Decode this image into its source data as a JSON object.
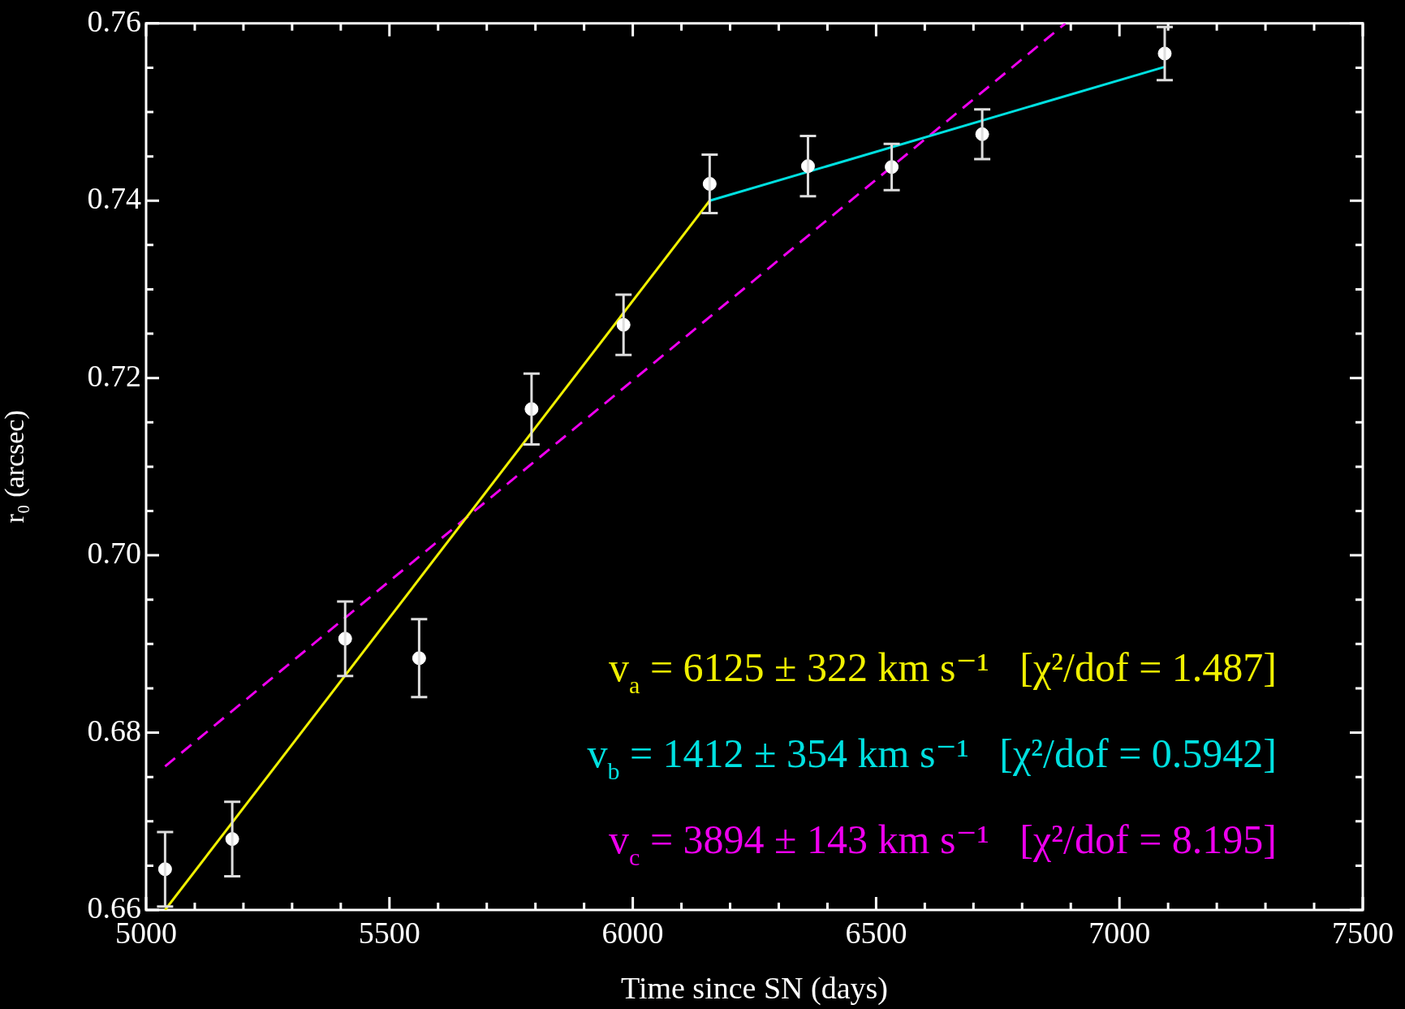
{
  "chart_data": {
    "type": "scatter",
    "xlabel": "Time since SN (days)",
    "ylabel": "r₀ (arcsec)",
    "xlim": [
      5000,
      7500
    ],
    "xticks": [
      5000,
      {
        "value": 5100,
        "label": null
      },
      {
        "value": 5200,
        "label": null
      },
      {
        "value": 5300,
        "label": null
      },
      {
        "value": 5400,
        "label": null
      },
      5500,
      {
        "value": 5600,
        "label": null
      },
      {
        "value": 5700,
        "label": null
      },
      {
        "value": 5800,
        "label": null
      },
      {
        "value": 5900,
        "label": null
      },
      6000,
      {
        "value": 6100,
        "label": null
      },
      {
        "value": 6200,
        "label": null
      },
      {
        "value": 6300,
        "label": null
      },
      {
        "value": 6400,
        "label": null
      },
      6500,
      {
        "value": 6600,
        "label": null
      },
      {
        "value": 6700,
        "label": null
      },
      {
        "value": 6800,
        "label": null
      },
      {
        "value": 6900,
        "label": null
      },
      7000,
      {
        "value": 7100,
        "label": null
      },
      {
        "value": 7200,
        "label": null
      },
      {
        "value": 7300,
        "label": null
      },
      {
        "value": 7400,
        "label": null
      },
      7500
    ],
    "ylim": [
      0.66,
      0.76
    ],
    "yticks": [
      0.66,
      {
        "value": 0.665,
        "label": null
      },
      {
        "value": 0.67,
        "label": null
      },
      {
        "value": 0.675,
        "label": null
      },
      0.68,
      {
        "value": 0.685,
        "label": null
      },
      {
        "value": 0.69,
        "label": null
      },
      {
        "value": 0.695,
        "label": null
      },
      {
        "value": 0.7,
        "label": "0.70"
      },
      {
        "value": 0.705,
        "label": null
      },
      {
        "value": 0.71,
        "label": null
      },
      {
        "value": 0.715,
        "label": null
      },
      0.72,
      {
        "value": 0.725,
        "label": null
      },
      {
        "value": 0.73,
        "label": null
      },
      {
        "value": 0.735,
        "label": null
      },
      0.74,
      {
        "value": 0.745,
        "label": null
      },
      {
        "value": 0.75,
        "label": null
      },
      {
        "value": 0.755,
        "label": null
      },
      0.76
    ],
    "series": [
      {
        "color": "#ffffff",
        "marker": "circle",
        "x": [
          5039,
          5177,
          5409,
          5561,
          5792,
          5981,
          6158,
          6360,
          6532,
          6718,
          7093
        ],
        "values": [
          0.6646,
          0.668,
          0.6906,
          0.6884,
          0.7165,
          0.726,
          0.7419,
          0.7439,
          0.7438,
          0.7475,
          0.7566
        ],
        "errors": [
          0.0042,
          0.0042,
          0.0042,
          0.0044,
          0.004,
          0.0034,
          0.0033,
          0.0034,
          0.0026,
          0.0028,
          0.003
        ]
      },
      {
        "type": "line",
        "color": "#f0f000",
        "x": [
          5039,
          6158
        ],
        "values": [
          0.66,
          0.74
        ]
      },
      {
        "type": "line",
        "color": "#00e0e0",
        "x": [
          6158,
          7093
        ],
        "values": [
          0.74,
          0.7551
        ]
      },
      {
        "type": "line",
        "color": "#ee00ee",
        "line_style": "dashed",
        "x": [
          5039,
          6889
        ],
        "values": [
          0.6762,
          0.76
        ]
      }
    ],
    "annotations": [
      "v$_{a}$ = 6125 ± 322 km s⁻¹   [χ²/dof = 1.487]",
      "v$_{b}$ = 1412 ± 354 km s⁻¹   [χ²/dof = 0.5942]",
      "v$_{c}$ = 3894 ± 143 km s⁻¹   [χ²/dof = 8.195]"
    ]
  }
}
